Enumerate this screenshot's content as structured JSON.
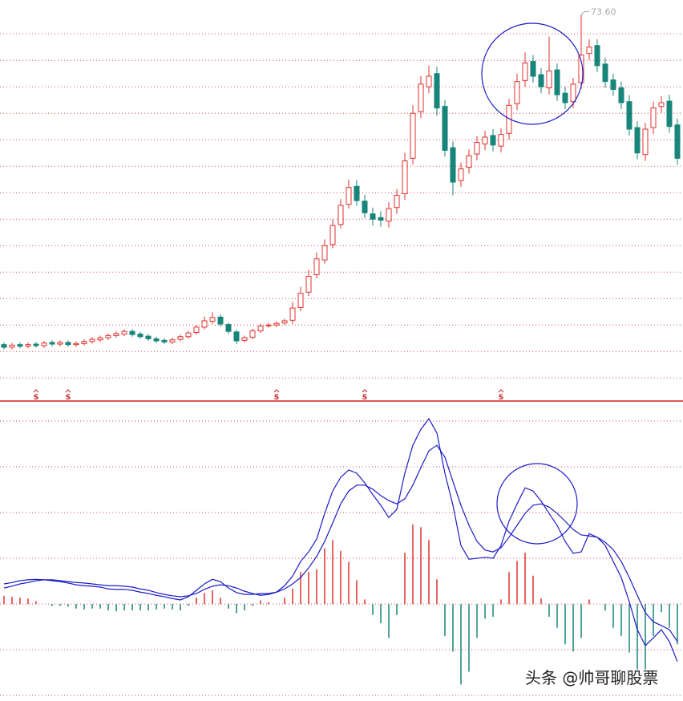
{
  "chart_data": [
    {
      "type": "candlestick",
      "open": [
        11.3,
        10.8,
        11.3,
        11.0,
        11.4,
        11.1,
        11.7,
        11.4,
        11.7,
        11.3,
        11.5,
        11.9,
        12.2,
        12.6,
        13.0,
        13.3,
        13.8,
        13.3,
        12.9,
        12.4,
        12.1,
        11.8,
        12.3,
        12.8,
        13.6,
        14.6,
        15.7,
        16.5,
        15.1,
        13.7,
        12.1,
        12.7,
        13.9,
        14.9,
        15.0,
        15.4,
        15.9,
        18.3,
        21.2,
        24.5,
        27.3,
        30.2,
        34.0,
        37.8,
        41.2,
        38.4,
        36.0,
        35.3,
        34.6,
        37.2,
        39.8,
        46.5,
        55.3,
        60.0,
        62.5,
        56.3,
        48.5,
        42.3,
        44.8,
        47.3,
        49.2,
        50.8,
        48.8,
        51.2,
        56.8,
        61.2,
        64.8,
        62.3,
        59.8,
        63.2,
        58.8,
        57.2,
        60.8,
        66.3,
        67.8,
        64.3,
        61.3,
        59.8,
        57.2,
        52.3,
        47.2,
        52.3,
        56.3,
        57.3,
        52.8
      ],
      "high": [
        11.7,
        11.6,
        11.7,
        11.7,
        11.8,
        12.0,
        12.1,
        12.1,
        12.1,
        11.9,
        12.3,
        12.7,
        13.0,
        13.4,
        13.8,
        14.2,
        14.2,
        13.7,
        13.3,
        12.8,
        12.5,
        12.6,
        13.2,
        13.9,
        15.0,
        16.6,
        17.4,
        17.0,
        15.5,
        14.1,
        13.0,
        14.3,
        15.2,
        15.4,
        15.7,
        16.2,
        19.4,
        22.2,
        25.4,
        28.7,
        31.2,
        35.0,
        38.8,
        42.5,
        42.4,
        39.6,
        37.2,
        36.5,
        38.2,
        40.7,
        47.5,
        56.5,
        62.0,
        64.0,
        63.8,
        57.5,
        49.7,
        45.7,
        48.2,
        50.7,
        51.7,
        52.0,
        52.2,
        57.7,
        62.5,
        66.5,
        66.0,
        63.5,
        69.5,
        64.4,
        60.0,
        61.7,
        73.6,
        69.0,
        69.0,
        65.5,
        62.5,
        61.0,
        58.4,
        53.5,
        53.2,
        57.2,
        58.2,
        58.5,
        54.0
      ],
      "low": [
        10.4,
        10.4,
        10.6,
        10.6,
        10.7,
        10.7,
        11.0,
        11.0,
        10.9,
        10.9,
        11.1,
        11.5,
        11.8,
        12.2,
        12.6,
        12.9,
        12.8,
        12.4,
        12.0,
        11.6,
        11.4,
        11.4,
        11.9,
        12.4,
        13.2,
        14.2,
        15.2,
        14.7,
        13.3,
        11.4,
        11.7,
        12.3,
        13.5,
        14.5,
        14.6,
        15.0,
        15.2,
        17.6,
        20.5,
        23.8,
        26.6,
        29.5,
        33.3,
        37.0,
        37.5,
        35.2,
        33.8,
        33.6,
        33.4,
        36.0,
        38.6,
        45.3,
        54.1,
        58.8,
        54.5,
        46.8,
        39.5,
        41.1,
        43.6,
        46.1,
        48.0,
        47.8,
        47.6,
        50.0,
        55.6,
        60.0,
        60.8,
        58.8,
        58.6,
        57.3,
        55.8,
        56.0,
        59.6,
        65.1,
        62.8,
        59.8,
        58.3,
        55.8,
        50.8,
        46.3,
        46.0,
        51.1,
        55.1,
        51.3,
        45.3
      ],
      "close": [
        10.8,
        11.2,
        11.0,
        11.3,
        11.1,
        11.6,
        11.4,
        11.7,
        11.3,
        11.5,
        11.9,
        12.3,
        12.6,
        13.0,
        13.4,
        13.8,
        13.2,
        12.8,
        12.4,
        12.0,
        11.8,
        12.2,
        12.8,
        13.5,
        14.6,
        15.8,
        16.4,
        15.2,
        13.8,
        12.0,
        12.6,
        13.9,
        14.8,
        15.0,
        15.3,
        15.8,
        18.2,
        21.0,
        24.2,
        27.5,
        30.0,
        33.8,
        37.6,
        41.0,
        38.5,
        36.2,
        35.0,
        34.8,
        37.0,
        39.5,
        46.0,
        55.0,
        60.5,
        62.0,
        56.0,
        48.0,
        42.0,
        44.5,
        47.0,
        49.5,
        50.5,
        49.0,
        51.0,
        56.5,
        61.0,
        64.5,
        62.0,
        60.0,
        63.0,
        58.5,
        57.0,
        60.5,
        66.0,
        67.5,
        64.0,
        61.0,
        59.5,
        57.0,
        52.0,
        47.5,
        52.0,
        56.0,
        57.0,
        52.5,
        46.5
      ],
      "max_label": "73.60",
      "markers": [
        {
          "index": 4,
          "label": "S"
        },
        {
          "index": 8,
          "label": "S"
        },
        {
          "index": 34,
          "label": "S"
        },
        {
          "index": 45,
          "label": "S"
        },
        {
          "index": 62,
          "label": "S"
        }
      ],
      "up_color": "#e0312e",
      "down_color": "#17857a",
      "ylim": [
        1.4,
        76.4
      ],
      "yticks": [
        5,
        10,
        15,
        20,
        25,
        30,
        35,
        40,
        45,
        50,
        55,
        60,
        65,
        70
      ],
      "grid": true
    },
    {
      "type": "macd",
      "dif": {
        "color": "#1c1cc8",
        "values": [
          0.44,
          0.47,
          0.51,
          0.53,
          0.54,
          0.53,
          0.51,
          0.49,
          0.46,
          0.42,
          0.4,
          0.39,
          0.37,
          0.33,
          0.32,
          0.32,
          0.3,
          0.26,
          0.23,
          0.19,
          0.16,
          0.12,
          0.09,
          0.16,
          0.3,
          0.44,
          0.54,
          0.49,
          0.35,
          0.25,
          0.21,
          0.21,
          0.23,
          0.23,
          0.26,
          0.4,
          0.61,
          0.93,
          1.14,
          1.42,
          1.98,
          2.47,
          2.77,
          2.93,
          2.86,
          2.65,
          2.39,
          2.16,
          1.89,
          2.07,
          2.86,
          3.47,
          3.82,
          4.05,
          3.74,
          2.86,
          2.16,
          1.28,
          0.98,
          1.0,
          1.02,
          1.0,
          1.28,
          1.81,
          2.19,
          2.54,
          2.47,
          2.25,
          1.98,
          1.72,
          1.37,
          1.11,
          1.14,
          1.54,
          1.46,
          1.28,
          0.93,
          0.58,
          0.05,
          -0.56,
          -0.91,
          -0.74,
          -0.56,
          -0.82,
          -1.26
        ]
      },
      "dea": {
        "color": "#1c1cc8",
        "values": [
          0.35,
          0.39,
          0.44,
          0.47,
          0.51,
          0.53,
          0.53,
          0.51,
          0.49,
          0.47,
          0.46,
          0.44,
          0.42,
          0.4,
          0.4,
          0.39,
          0.37,
          0.33,
          0.3,
          0.25,
          0.21,
          0.18,
          0.16,
          0.18,
          0.23,
          0.32,
          0.39,
          0.42,
          0.4,
          0.35,
          0.28,
          0.23,
          0.19,
          0.21,
          0.26,
          0.33,
          0.44,
          0.58,
          0.79,
          1.04,
          1.37,
          1.77,
          2.19,
          2.47,
          2.6,
          2.6,
          2.51,
          2.37,
          2.26,
          2.19,
          2.3,
          2.6,
          2.98,
          3.35,
          3.47,
          3.21,
          2.68,
          2.16,
          1.72,
          1.37,
          1.18,
          1.14,
          1.23,
          1.46,
          1.72,
          1.98,
          2.16,
          2.19,
          2.12,
          1.98,
          1.81,
          1.63,
          1.51,
          1.49,
          1.46,
          1.35,
          1.19,
          0.93,
          0.58,
          0.19,
          -0.19,
          -0.39,
          -0.47,
          -0.56,
          -0.82
        ]
      },
      "histogram": {
        "up_color": "#e0312e",
        "down_color": "#17857a",
        "values": [
          0.18,
          0.16,
          0.14,
          0.12,
          0.06,
          0,
          -0.04,
          -0.04,
          -0.06,
          -0.1,
          -0.12,
          -0.1,
          -0.1,
          -0.14,
          -0.16,
          -0.14,
          -0.14,
          -0.14,
          -0.14,
          -0.12,
          -0.1,
          -0.12,
          -0.14,
          -0.04,
          0.14,
          0.24,
          0.3,
          0.14,
          -0.1,
          -0.2,
          -0.14,
          -0.04,
          0.08,
          0.04,
          0,
          0.14,
          0.34,
          0.7,
          0.7,
          0.76,
          1.22,
          1.4,
          1.16,
          0.92,
          0.52,
          0.1,
          -0.24,
          -0.42,
          -0.74,
          -0.24,
          1.12,
          1.74,
          1.68,
          1.4,
          0.54,
          -0.7,
          -1.04,
          -1.76,
          -1.48,
          -0.74,
          -0.32,
          -0.28,
          0.1,
          0.7,
          0.94,
          1.12,
          0.62,
          0.12,
          -0.28,
          -0.52,
          -0.88,
          -1.04,
          -0.74,
          0.1,
          0,
          -0.14,
          -0.52,
          -0.7,
          -1.06,
          -1.5,
          -1.44,
          -0.7,
          -0.18,
          -0.52,
          -0.88
        ]
      },
      "ylim": [
        -2.12,
        4.35
      ],
      "yticks": [
        -2,
        -1,
        0,
        1,
        2,
        3,
        4
      ],
      "grid": true
    }
  ],
  "watermark": "头条 @帅哥聊股票"
}
